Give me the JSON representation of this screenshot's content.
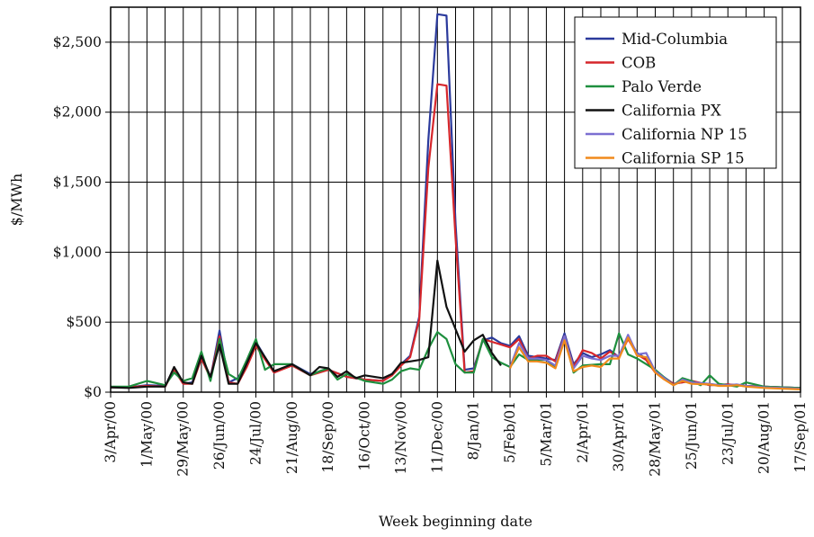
{
  "chart_data": {
    "type": "line",
    "title": "",
    "xlabel": "Week beginning date",
    "ylabel": "$/MWh",
    "ylim": [
      0,
      2750
    ],
    "y_ticks": [
      0,
      500,
      1000,
      1500,
      2000,
      2500
    ],
    "y_tick_labels": [
      "$0",
      "$500",
      "$1,000",
      "$1,500",
      "$2,000",
      "$2,500"
    ],
    "x_range": [
      "2000-04-03",
      "2001-09-17"
    ],
    "x_ticks": [
      "2000-04-03",
      "2000-05-01",
      "2000-05-29",
      "2000-06-26",
      "2000-07-24",
      "2000-08-21",
      "2000-09-18",
      "2000-10-16",
      "2000-11-13",
      "2000-12-11",
      "2001-01-08",
      "2001-02-05",
      "2001-03-05",
      "2001-04-02",
      "2001-04-30",
      "2001-05-28",
      "2001-06-25",
      "2001-07-23",
      "2001-08-20",
      "2001-09-17"
    ],
    "x_tick_labels": [
      "3/Apr/00",
      "1/May/00",
      "29/May/00",
      "26/Jun/00",
      "24/Jul/00",
      "21/Aug/00",
      "18/Sep/00",
      "16/Oct/00",
      "13/Nov/00",
      "11/Dec/00",
      "8/Jan/01",
      "5/Feb/01",
      "5/Mar/01",
      "2/Apr/01",
      "30/Apr/01",
      "28/May/01",
      "25/Jun/01",
      "23/Jul/01",
      "20/Aug/01",
      "17/Sep/01"
    ],
    "vertical_grid": "every 2 weeks",
    "horizontal_grid": "at y ticks",
    "legend_position": "top-right",
    "series": [
      {
        "name": "Mid-Columbia",
        "color": "#2b3a9c",
        "x": [
          "2000-04-03",
          "2000-04-17",
          "2000-05-01",
          "2000-05-15",
          "2000-05-22",
          "2000-05-29",
          "2000-06-05",
          "2000-06-12",
          "2000-06-19",
          "2000-06-26",
          "2000-07-03",
          "2000-07-10",
          "2000-07-17",
          "2000-07-24",
          "2000-08-07",
          "2000-08-21",
          "2000-09-04",
          "2000-09-18",
          "2000-10-02",
          "2000-10-16",
          "2000-10-30",
          "2000-11-06",
          "2000-11-13",
          "2000-11-20",
          "2000-11-27",
          "2000-12-04",
          "2000-12-11",
          "2000-12-18",
          "2000-12-25",
          "2001-01-01",
          "2001-01-08",
          "2001-01-15",
          "2001-01-22",
          "2001-01-29",
          "2001-02-05",
          "2001-02-12",
          "2001-02-19",
          "2001-02-26",
          "2001-03-05",
          "2001-03-12",
          "2001-03-19",
          "2001-03-26",
          "2001-04-02",
          "2001-04-09",
          "2001-04-16",
          "2001-04-23",
          "2001-04-30",
          "2001-05-07",
          "2001-05-14",
          "2001-05-21",
          "2001-05-28",
          "2001-06-11",
          "2001-06-25",
          "2001-07-09",
          "2001-07-23",
          "2001-08-06",
          "2001-08-20",
          "2001-09-17"
        ],
        "y": [
          35,
          35,
          50,
          45,
          170,
          60,
          70,
          260,
          100,
          440,
          70,
          100,
          200,
          360,
          140,
          200,
          130,
          160,
          110,
          90,
          80,
          130,
          200,
          260,
          540,
          1800,
          2700,
          2690,
          1200,
          160,
          170,
          370,
          390,
          350,
          330,
          400,
          260,
          250,
          240,
          230,
          420,
          200,
          280,
          250,
          270,
          300,
          250,
          390,
          280,
          240,
          150,
          60,
          80,
          50,
          55,
          45,
          40,
          30
        ]
      },
      {
        "name": "COB",
        "color": "#d6262b",
        "x": [
          "2000-04-03",
          "2000-04-17",
          "2000-05-01",
          "2000-05-15",
          "2000-05-22",
          "2000-05-29",
          "2000-06-05",
          "2000-06-12",
          "2000-06-19",
          "2000-06-26",
          "2000-07-03",
          "2000-07-10",
          "2000-07-17",
          "2000-07-24",
          "2000-08-07",
          "2000-08-21",
          "2000-09-04",
          "2000-09-18",
          "2000-10-02",
          "2000-10-16",
          "2000-10-30",
          "2000-11-06",
          "2000-11-13",
          "2000-11-20",
          "2000-11-27",
          "2000-12-04",
          "2000-12-11",
          "2000-12-18",
          "2000-12-25",
          "2001-01-01",
          "2001-01-08",
          "2001-01-15",
          "2001-01-22",
          "2001-01-29",
          "2001-02-05",
          "2001-02-12",
          "2001-02-19",
          "2001-02-26",
          "2001-03-05",
          "2001-03-12",
          "2001-03-19",
          "2001-03-26",
          "2001-04-02",
          "2001-04-09",
          "2001-04-16",
          "2001-04-23",
          "2001-04-30",
          "2001-05-07",
          "2001-05-14",
          "2001-05-21",
          "2001-05-28",
          "2001-06-11",
          "2001-06-25",
          "2001-07-09",
          "2001-07-23",
          "2001-08-06",
          "2001-08-20",
          "2001-09-17"
        ],
        "y": [
          35,
          35,
          45,
          40,
          160,
          60,
          60,
          240,
          100,
          400,
          70,
          60,
          180,
          330,
          140,
          190,
          120,
          160,
          110,
          90,
          80,
          120,
          190,
          250,
          520,
          1600,
          2200,
          2190,
          1100,
          140,
          150,
          380,
          360,
          340,
          320,
          380,
          240,
          260,
          260,
          220,
          400,
          180,
          300,
          280,
          240,
          290,
          250,
          380,
          270,
          230,
          140,
          60,
          80,
          50,
          55,
          45,
          40,
          30
        ]
      },
      {
        "name": "Palo Verde",
        "color": "#1e8f3e",
        "x": [
          "2000-04-03",
          "2000-04-17",
          "2000-05-01",
          "2000-05-15",
          "2000-05-22",
          "2000-05-29",
          "2000-06-05",
          "2000-06-12",
          "2000-06-19",
          "2000-06-26",
          "2000-07-03",
          "2000-07-10",
          "2000-07-17",
          "2000-07-24",
          "2000-07-31",
          "2000-08-07",
          "2000-08-21",
          "2000-09-04",
          "2000-09-11",
          "2000-09-18",
          "2000-09-25",
          "2000-10-02",
          "2000-10-16",
          "2000-10-30",
          "2000-11-06",
          "2000-11-13",
          "2000-11-20",
          "2000-11-27",
          "2000-12-04",
          "2000-12-11",
          "2000-12-18",
          "2000-12-25",
          "2001-01-01",
          "2001-01-08",
          "2001-01-15",
          "2001-01-22",
          "2001-01-29",
          "2001-02-05",
          "2001-02-12",
          "2001-02-19",
          "2001-03-05",
          "2001-03-12",
          "2001-03-19",
          "2001-03-26",
          "2001-04-02",
          "2001-04-16",
          "2001-04-23",
          "2001-04-30",
          "2001-05-07",
          "2001-05-14",
          "2001-05-28",
          "2001-06-11",
          "2001-06-18",
          "2001-06-25",
          "2001-07-02",
          "2001-07-09",
          "2001-07-16",
          "2001-07-23",
          "2001-07-30",
          "2001-08-06",
          "2001-08-20",
          "2001-09-17"
        ],
        "y": [
          40,
          40,
          80,
          50,
          140,
          80,
          100,
          290,
          80,
          380,
          130,
          90,
          230,
          380,
          160,
          200,
          200,
          120,
          150,
          170,
          90,
          130,
          80,
          60,
          90,
          150,
          170,
          160,
          310,
          430,
          380,
          200,
          140,
          140,
          380,
          250,
          210,
          180,
          270,
          230,
          230,
          180,
          390,
          140,
          190,
          200,
          200,
          420,
          270,
          240,
          160,
          50,
          100,
          80,
          50,
          120,
          60,
          50,
          40,
          70,
          40,
          30
        ]
      },
      {
        "name": "California PX",
        "color": "#111111",
        "x": [
          "2000-04-03",
          "2000-04-17",
          "2000-05-01",
          "2000-05-15",
          "2000-05-22",
          "2000-05-29",
          "2000-06-05",
          "2000-06-12",
          "2000-06-19",
          "2000-06-26",
          "2000-07-03",
          "2000-07-10",
          "2000-07-24",
          "2000-08-07",
          "2000-08-21",
          "2000-09-04",
          "2000-09-11",
          "2000-09-18",
          "2000-09-25",
          "2000-10-02",
          "2000-10-09",
          "2000-10-16",
          "2000-10-30",
          "2000-11-06",
          "2000-11-13",
          "2000-11-20",
          "2000-11-27",
          "2000-12-04",
          "2000-12-11",
          "2000-12-18",
          "2000-12-25",
          "2001-01-01",
          "2001-01-08",
          "2001-01-15",
          "2001-01-22",
          "2001-01-29"
        ],
        "y": [
          35,
          30,
          40,
          40,
          180,
          70,
          60,
          260,
          110,
          340,
          60,
          60,
          350,
          150,
          200,
          120,
          180,
          170,
          110,
          150,
          100,
          120,
          100,
          130,
          210,
          220,
          230,
          250,
          940,
          610,
          450,
          290,
          370,
          410,
          280,
          190
        ]
      },
      {
        "name": "California NP 15",
        "color": "#7b6fd1",
        "x": [
          "2001-02-05",
          "2001-02-12",
          "2001-02-19",
          "2001-02-26",
          "2001-03-05",
          "2001-03-12",
          "2001-03-19",
          "2001-03-26",
          "2001-04-02",
          "2001-04-09",
          "2001-04-16",
          "2001-04-23",
          "2001-04-30",
          "2001-05-07",
          "2001-05-14",
          "2001-05-21",
          "2001-05-28",
          "2001-06-04",
          "2001-06-11",
          "2001-06-18",
          "2001-06-25",
          "2001-07-09",
          "2001-07-16",
          "2001-07-23",
          "2001-07-30",
          "2001-08-06",
          "2001-08-20",
          "2001-09-17"
        ],
        "y": [
          180,
          350,
          240,
          240,
          230,
          190,
          400,
          170,
          260,
          240,
          230,
          260,
          260,
          410,
          270,
          280,
          150,
          100,
          50,
          90,
          70,
          60,
          50,
          50,
          55,
          45,
          35,
          25
        ]
      },
      {
        "name": "California SP 15",
        "color": "#f08a1c",
        "x": [
          "2001-02-05",
          "2001-02-12",
          "2001-02-19",
          "2001-02-26",
          "2001-03-05",
          "2001-03-12",
          "2001-03-19",
          "2001-03-26",
          "2001-04-02",
          "2001-04-09",
          "2001-04-16",
          "2001-04-23",
          "2001-04-30",
          "2001-05-07",
          "2001-05-14",
          "2001-05-21",
          "2001-05-28",
          "2001-06-04",
          "2001-06-11",
          "2001-06-18",
          "2001-06-25",
          "2001-07-09",
          "2001-07-16",
          "2001-07-23",
          "2001-07-30",
          "2001-08-06",
          "2001-08-20",
          "2001-09-17"
        ],
        "y": [
          170,
          320,
          220,
          220,
          210,
          170,
          370,
          150,
          180,
          190,
          180,
          240,
          240,
          390,
          260,
          250,
          140,
          90,
          50,
          80,
          60,
          55,
          45,
          45,
          50,
          40,
          30,
          20
        ]
      }
    ]
  }
}
